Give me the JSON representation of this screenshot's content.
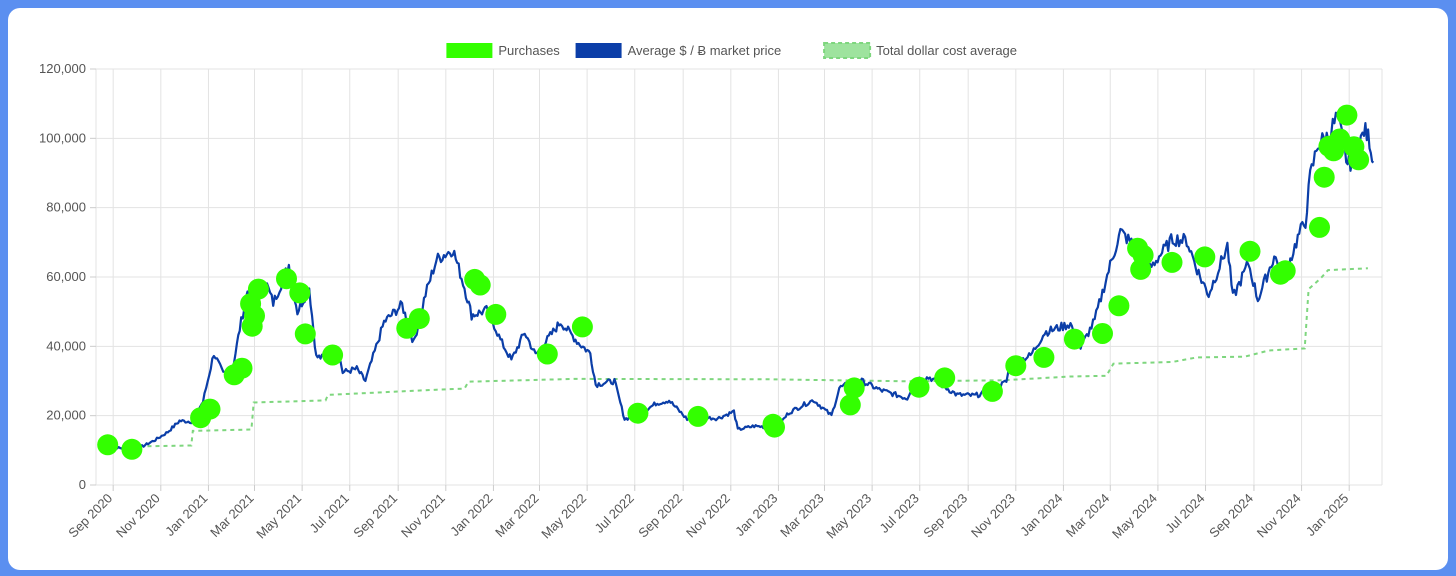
{
  "colors": {
    "frame": "#5b8ff0",
    "purchase": "#33ff00",
    "price_line": "#0b3ea8",
    "dca_line": "#7ed67e",
    "grid": "#e3e3e3"
  },
  "chart_data": {
    "type": "line",
    "legend": {
      "position": "top-center",
      "items": [
        {
          "key": "purchases",
          "label": "Purchases",
          "color": "#33ff00",
          "style": "filled"
        },
        {
          "key": "price",
          "label": "Average $ / Ƀ market price",
          "color": "#0b3ea8",
          "style": "filled"
        },
        {
          "key": "dca",
          "label": "Total dollar cost average",
          "color": "#7ed67e",
          "style": "dashed"
        }
      ]
    },
    "grid": true,
    "x_tick_labels": [
      "Sep 2020",
      "Nov 2020",
      "Jan 2021",
      "Mar 2021",
      "May 2021",
      "Jul 2021",
      "Sep 2021",
      "Nov 2021",
      "Jan 2022",
      "Mar 2022",
      "May 2022",
      "Jul 2022",
      "Sep 2022",
      "Nov 2022",
      "Jan 2023",
      "Mar 2023",
      "May 2023",
      "Jul 2023",
      "Sep 2023",
      "Nov 2023",
      "Jan 2024",
      "Mar 2024",
      "May 2024",
      "Jul 2024",
      "Sep 2024",
      "Nov 2024",
      "Jan 2025"
    ],
    "y_tick_labels": [
      "0",
      "20,000",
      "40,000",
      "60,000",
      "80,000",
      "100,000",
      "120,000"
    ],
    "ylim": [
      0,
      120000
    ],
    "series": [
      {
        "key": "price",
        "name": "Average $ / Ƀ market price",
        "points": [
          [
            "2020-08-25",
            11400
          ],
          [
            "2020-09-10",
            10600
          ],
          [
            "2020-09-25",
            10500
          ],
          [
            "2020-10-10",
            11300
          ],
          [
            "2020-10-25",
            13000
          ],
          [
            "2020-11-10",
            15300
          ],
          [
            "2020-11-25",
            18500
          ],
          [
            "2020-12-10",
            18300
          ],
          [
            "2020-12-25",
            24000
          ],
          [
            "2021-01-08",
            38000
          ],
          [
            "2021-01-20",
            32000
          ],
          [
            "2021-02-01",
            33500
          ],
          [
            "2021-02-10",
            45000
          ],
          [
            "2021-02-20",
            56000
          ],
          [
            "2021-02-28",
            45500
          ],
          [
            "2021-03-13",
            60000
          ],
          [
            "2021-03-25",
            52500
          ],
          [
            "2021-04-14",
            63500
          ],
          [
            "2021-04-25",
            50000
          ],
          [
            "2021-05-10",
            57000
          ],
          [
            "2021-05-19",
            37000
          ],
          [
            "2021-06-01",
            36500
          ],
          [
            "2021-06-15",
            40000
          ],
          [
            "2021-06-22",
            32500
          ],
          [
            "2021-07-10",
            33500
          ],
          [
            "2021-07-21",
            30000
          ],
          [
            "2021-08-14",
            47000
          ],
          [
            "2021-09-06",
            52000
          ],
          [
            "2021-09-21",
            41000
          ],
          [
            "2021-10-06",
            55000
          ],
          [
            "2021-10-20",
            65000
          ],
          [
            "2021-11-10",
            68000
          ],
          [
            "2021-11-25",
            57000
          ],
          [
            "2021-12-04",
            49000
          ],
          [
            "2021-12-25",
            50500
          ],
          [
            "2022-01-10",
            41800
          ],
          [
            "2022-01-24",
            36000
          ],
          [
            "2022-02-10",
            44000
          ],
          [
            "2022-02-24",
            37500
          ],
          [
            "2022-03-28",
            47000
          ],
          [
            "2022-04-20",
            41000
          ],
          [
            "2022-05-05",
            38000
          ],
          [
            "2022-05-12",
            29000
          ],
          [
            "2022-06-05",
            30000
          ],
          [
            "2022-06-18",
            19000
          ],
          [
            "2022-07-05",
            20200
          ],
          [
            "2022-07-28",
            23500
          ],
          [
            "2022-08-14",
            24400
          ],
          [
            "2022-09-06",
            19000
          ],
          [
            "2022-09-25",
            19500
          ],
          [
            "2022-10-15",
            19200
          ],
          [
            "2022-11-05",
            21200
          ],
          [
            "2022-11-10",
            16000
          ],
          [
            "2022-12-01",
            17000
          ],
          [
            "2022-12-30",
            16500
          ],
          [
            "2023-01-14",
            20800
          ],
          [
            "2023-02-01",
            23000
          ],
          [
            "2023-02-15",
            24500
          ],
          [
            "2023-03-10",
            20000
          ],
          [
            "2023-03-20",
            28000
          ],
          [
            "2023-04-14",
            30400
          ],
          [
            "2023-05-10",
            27500
          ],
          [
            "2023-06-15",
            25000
          ],
          [
            "2023-06-25",
            30500
          ],
          [
            "2023-07-14",
            31000
          ],
          [
            "2023-08-18",
            26000
          ],
          [
            "2023-09-10",
            25800
          ],
          [
            "2023-09-29",
            27000
          ],
          [
            "2023-10-20",
            29800
          ],
          [
            "2023-10-24",
            34500
          ],
          [
            "2023-11-20",
            37400
          ],
          [
            "2023-12-08",
            44000
          ],
          [
            "2024-01-10",
            46500
          ],
          [
            "2024-01-23",
            39500
          ],
          [
            "2024-02-10",
            47500
          ],
          [
            "2024-02-28",
            62000
          ],
          [
            "2024-03-14",
            73000
          ],
          [
            "2024-04-01",
            69000
          ],
          [
            "2024-04-17",
            61500
          ],
          [
            "2024-05-20",
            71000
          ],
          [
            "2024-06-07",
            70500
          ],
          [
            "2024-06-24",
            60000
          ],
          [
            "2024-07-05",
            55000
          ],
          [
            "2024-07-29",
            69000
          ],
          [
            "2024-08-05",
            54000
          ],
          [
            "2024-08-25",
            64000
          ],
          [
            "2024-09-06",
            53500
          ],
          [
            "2024-09-27",
            66000
          ],
          [
            "2024-10-10",
            60000
          ],
          [
            "2024-10-29",
            72500
          ],
          [
            "2024-11-06",
            76000
          ],
          [
            "2024-11-12",
            89000
          ],
          [
            "2024-11-22",
            98500
          ],
          [
            "2024-12-05",
            100500
          ],
          [
            "2024-12-17",
            106500
          ],
          [
            "2024-12-30",
            92500
          ],
          [
            "2025-01-10",
            94500
          ],
          [
            "2025-01-20",
            102500
          ],
          [
            "2025-01-27",
            99500
          ],
          [
            "2025-02-01",
            93000
          ]
        ]
      },
      {
        "key": "dca",
        "name": "Total dollar cost average",
        "points": [
          [
            "2020-10-15",
            11200
          ],
          [
            "2020-12-10",
            11400
          ],
          [
            "2020-12-12",
            15600
          ],
          [
            "2021-02-25",
            16000
          ],
          [
            "2021-02-28",
            23800
          ],
          [
            "2021-05-31",
            24400
          ],
          [
            "2021-06-03",
            26000
          ],
          [
            "2021-10-20",
            27500
          ],
          [
            "2021-11-25",
            27800
          ],
          [
            "2021-11-30",
            29800
          ],
          [
            "2022-04-15",
            30600
          ],
          [
            "2022-12-20",
            30500
          ],
          [
            "2023-06-15",
            29900
          ],
          [
            "2023-10-15",
            30200
          ],
          [
            "2024-01-10",
            31300
          ],
          [
            "2024-02-25",
            31500
          ],
          [
            "2024-03-05",
            35000
          ],
          [
            "2024-05-20",
            35500
          ],
          [
            "2024-06-20",
            36800
          ],
          [
            "2024-08-20",
            37000
          ],
          [
            "2024-09-20",
            38800
          ],
          [
            "2024-11-05",
            39400
          ],
          [
            "2024-11-10",
            56500
          ],
          [
            "2024-11-25",
            59500
          ],
          [
            "2024-12-05",
            62000
          ],
          [
            "2025-01-25",
            62500
          ]
        ]
      },
      {
        "key": "purchases",
        "name": "Purchases",
        "points": [
          [
            "2020-08-25",
            11600
          ],
          [
            "2020-09-25",
            10300
          ],
          [
            "2020-12-22",
            19400
          ],
          [
            "2021-01-03",
            21900
          ],
          [
            "2021-02-03",
            31800
          ],
          [
            "2021-02-13",
            33700
          ],
          [
            "2021-02-26",
            45800
          ],
          [
            "2021-03-01",
            48800
          ],
          [
            "2021-02-24",
            52300
          ],
          [
            "2021-03-06",
            56500
          ],
          [
            "2021-04-11",
            59500
          ],
          [
            "2021-04-28",
            55400
          ],
          [
            "2021-05-05",
            43600
          ],
          [
            "2021-06-09",
            37500
          ],
          [
            "2021-09-12",
            45200
          ],
          [
            "2021-09-28",
            48000
          ],
          [
            "2021-12-08",
            59300
          ],
          [
            "2021-12-15",
            57700
          ],
          [
            "2022-01-04",
            49200
          ],
          [
            "2022-03-11",
            37800
          ],
          [
            "2022-04-25",
            45600
          ],
          [
            "2022-07-05",
            20700
          ],
          [
            "2022-09-20",
            19800
          ],
          [
            "2022-12-25",
            17500
          ],
          [
            "2022-12-27",
            16700
          ],
          [
            "2023-04-03",
            23100
          ],
          [
            "2023-04-08",
            28000
          ],
          [
            "2023-06-30",
            28200
          ],
          [
            "2023-08-02",
            30900
          ],
          [
            "2023-10-02",
            27000
          ],
          [
            "2023-11-01",
            34400
          ],
          [
            "2023-12-07",
            36800
          ],
          [
            "2024-01-15",
            42100
          ],
          [
            "2024-02-20",
            43700
          ],
          [
            "2024-03-12",
            51700
          ],
          [
            "2024-04-05",
            68300
          ],
          [
            "2024-04-09",
            62200
          ],
          [
            "2024-04-12",
            66300
          ],
          [
            "2024-05-19",
            64200
          ],
          [
            "2024-06-30",
            65800
          ],
          [
            "2024-08-27",
            67400
          ],
          [
            "2024-10-05",
            60800
          ],
          [
            "2024-10-11",
            61800
          ],
          [
            "2024-11-24",
            74300
          ],
          [
            "2024-11-30",
            88800
          ],
          [
            "2024-12-06",
            97700
          ],
          [
            "2024-12-12",
            96400
          ],
          [
            "2024-12-20",
            99800
          ],
          [
            "2024-12-29",
            106700
          ],
          [
            "2025-01-07",
            97600
          ],
          [
            "2025-01-13",
            93800
          ]
        ]
      }
    ]
  }
}
